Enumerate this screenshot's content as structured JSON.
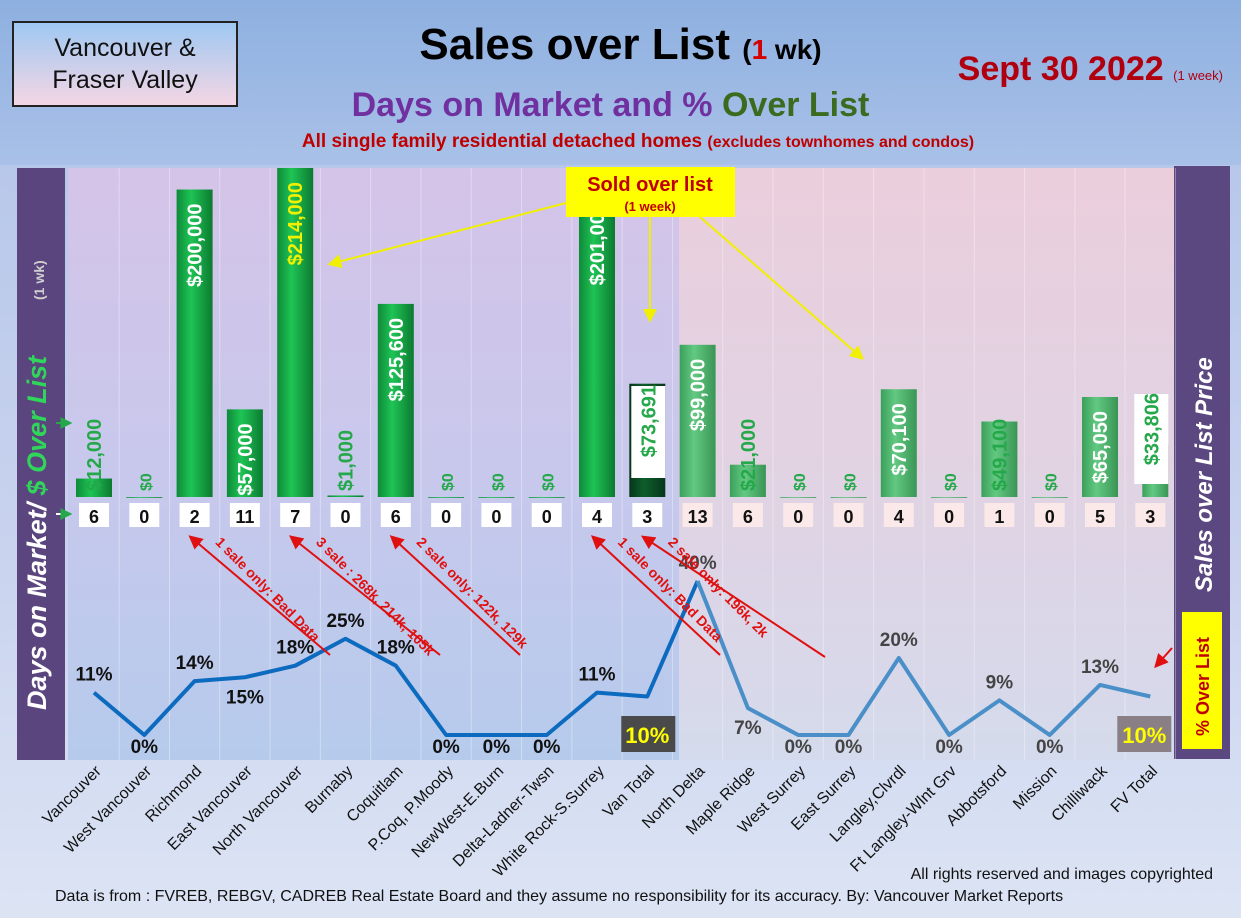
{
  "header": {
    "region": "Vancouver & Fraser Valley",
    "title_main": "Sales over List",
    "title_paren_open": "(",
    "title_paren_num": "1",
    "title_paren_close": " wk)",
    "date": "Sept 30  2022",
    "date_note": "(1 week)",
    "subtitle_a": "Days on Market and % ",
    "subtitle_b": "Over List",
    "description": "All single family residential detached homes",
    "description_note": "(excludes townhomes and condos)"
  },
  "chart_data": {
    "type": "bar",
    "categories": [
      "Vancouver",
      "West Vancouver",
      "Richmond",
      "East Vancouver",
      "North Vancouver",
      "Burnaby",
      "Coquitlam",
      "P.Coq, P.Moody",
      "NewWest-E.Burn",
      "Delta-Ladner-Twsn",
      "White Rock-S.Surrey",
      "Van Total",
      "North Delta",
      "Maple Ridge",
      "West Surrey",
      "East Surrey",
      "Langley,Clvrdl",
      "Ft Langley-Wlnt Grv",
      "Abbotsford",
      "Mission",
      "Chilliwack",
      "FV Total"
    ],
    "series": [
      {
        "values": [
          12000,
          0,
          200000,
          57000,
          214000,
          1000,
          125600,
          0,
          0,
          0,
          201000,
          73691,
          99000,
          21000,
          0,
          0,
          70100,
          0,
          49100,
          0,
          65050,
          33806
        ],
        "labels": [
          "$12,000",
          "$0",
          "$200,000",
          "$57,000",
          "$214,000",
          "$1,000",
          "$125,600",
          "$0",
          "$0",
          "$0",
          "$201,000",
          "$73,691",
          "$99,000",
          "$21,000",
          "$0",
          "$0",
          "$70,100",
          "$0",
          "$49,100",
          "$0",
          "$65,050",
          "$33,806"
        ]
      },
      {
        "values": [
          6,
          0,
          2,
          11,
          7,
          0,
          6,
          0,
          0,
          0,
          4,
          3,
          13,
          6,
          0,
          0,
          4,
          0,
          1,
          0,
          5,
          3
        ]
      },
      {
        "values": [
          11,
          0,
          14,
          15,
          18,
          25,
          18,
          0,
          0,
          0,
          11,
          10,
          40,
          7,
          0,
          0,
          20,
          0,
          9,
          0,
          13,
          10
        ],
        "labels": [
          "11%",
          "0%",
          "14%",
          "15%",
          "18%",
          "25%",
          "18%",
          "0%",
          "0%",
          "0%",
          "11%",
          "10%",
          "40%",
          "7%",
          "0%",
          "0%",
          "20%",
          "0%",
          "9%",
          "0%",
          "13%",
          "10%"
        ]
      }
    ],
    "left_axis_title": "Days on Market/ ",
    "left_axis_title_b": "$ Over List",
    "left_axis_title_note": "(1 wk)",
    "right_axis_title": "Sales over List Price",
    "right_axis_badge": "% Over List",
    "callout_title": "Sold over list",
    "callout_note": "(1 week)",
    "annotations": [
      "1 sale only: Bad Data",
      "3 sale : 268k, 214k, 105k",
      "2 sale only: 122k, 129k",
      "1 sale only: Bad Data",
      "2 sale only: 196k, 2k"
    ],
    "colors": {
      "bar": "#1aa84a",
      "bar_dark": "#0a4d22",
      "bar_light": "#52b870",
      "line": "#0d6bbf",
      "label_green": "#25a84a",
      "label_yellow": "#f0f000",
      "annotation": "#e01010",
      "callout": "#f0f000"
    }
  },
  "footer": {
    "copyright": "All rights reserved and  images copyrighted",
    "source": "Data is from : FVREB, REBGV, CADREB Real Estate Board and they assume no responsibility for its accuracy. By: Vancouver Market Reports"
  }
}
